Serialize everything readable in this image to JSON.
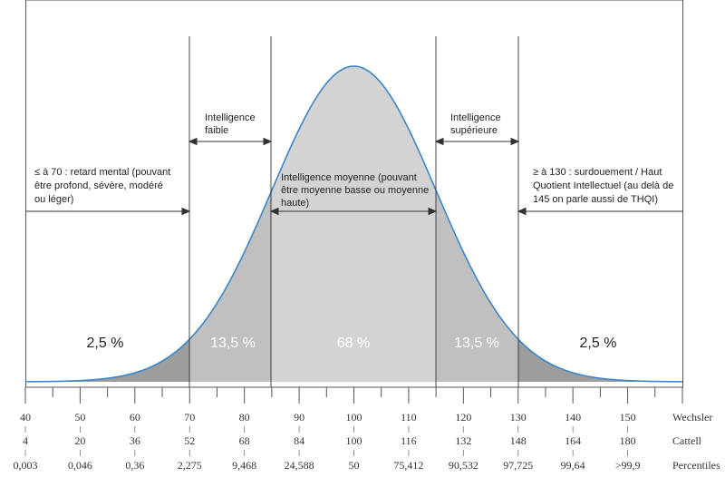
{
  "chart_data": {
    "type": "area",
    "title": "",
    "distribution": {
      "mean": 100,
      "sd": 15
    },
    "x_range": [
      40,
      160
    ],
    "boundaries": [
      70,
      85,
      115,
      130
    ],
    "colors": {
      "curve": "#3a86c8",
      "tail": "#9d9d9d",
      "middle_band": "#c0c0c0",
      "center": "#d3d3d4",
      "lines": "#333333",
      "pct_light": "#ffffff",
      "pct_dark": "#222222"
    },
    "scales": {
      "wechsler": {
        "name": "Wechsler",
        "ticks": [
          "40",
          "50",
          "60",
          "70",
          "80",
          "90",
          "100",
          "110",
          "120",
          "130",
          "140",
          "150"
        ]
      },
      "cattell": {
        "name": "Cattell",
        "ticks": [
          "4",
          "20",
          "36",
          "52",
          "68",
          "84",
          "100",
          "116",
          "132",
          "148",
          "164",
          "180"
        ]
      },
      "percentiles": {
        "name": "Percentiles",
        "ticks": [
          "0,003",
          "0,046",
          "0,36",
          "2,275",
          "9,468",
          "24,588",
          "50",
          "75,412",
          "90,532",
          "97,725",
          "99,64",
          ">99,9"
        ]
      }
    },
    "regions": [
      {
        "id": "left-tail",
        "percentage": "2,5 %",
        "lines": [
          "≤ à 70 : retard mental (pouvant",
          "être profond, sévère, modéré",
          "ou léger)"
        ]
      },
      {
        "id": "low",
        "percentage": "13,5 %",
        "lines": [
          "Intelligence",
          "faible"
        ]
      },
      {
        "id": "center",
        "percentage": "68 %",
        "lines": [
          "Intelligence moyenne (pouvant",
          "être moyenne basse ou moyenne",
          "haute)"
        ]
      },
      {
        "id": "high",
        "percentage": "13,5 %",
        "lines": [
          "Intelligence",
          "supérieure"
        ]
      },
      {
        "id": "right-tail",
        "percentage": "2,5 %",
        "lines": [
          "≥ à 130 : surdouement / Haut",
          "Quotient Intellectuel (au delà de",
          "145 on parle aussi de THQI)"
        ]
      }
    ]
  }
}
